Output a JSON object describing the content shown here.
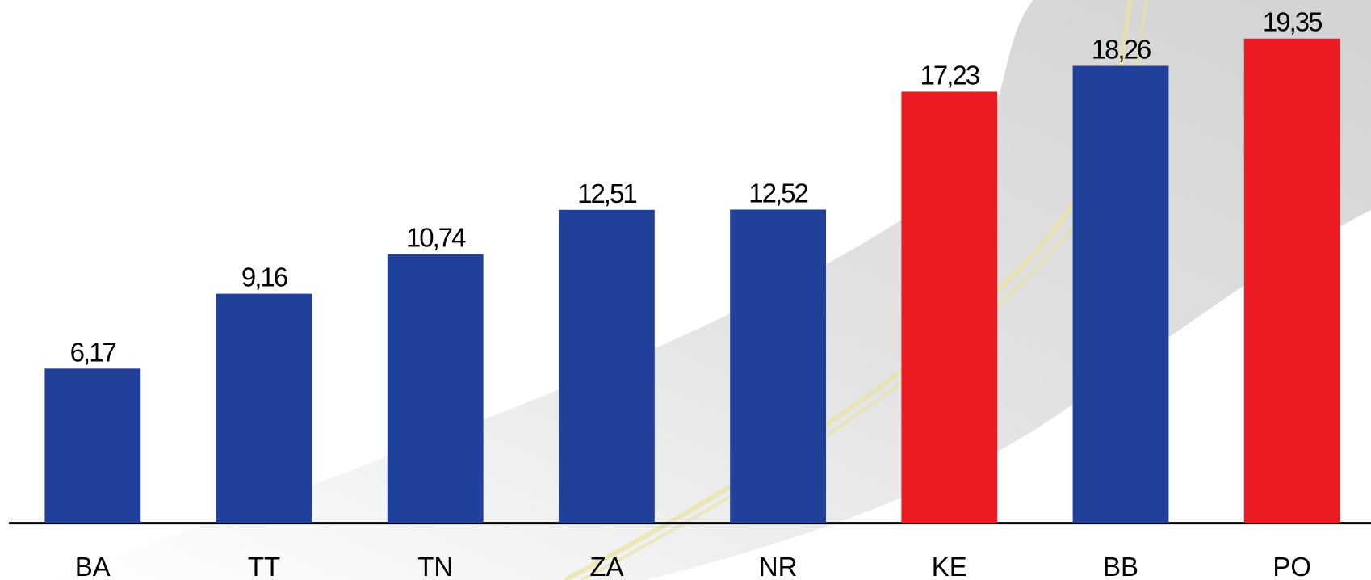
{
  "chart_data": {
    "type": "bar",
    "categories": [
      "BA",
      "TT",
      "TN",
      "ZA",
      "NR",
      "KE",
      "BB",
      "PO"
    ],
    "values": [
      6.17,
      9.16,
      10.74,
      12.51,
      12.52,
      17.23,
      18.26,
      19.35
    ],
    "value_labels": [
      "6,17",
      "9,16",
      "10,74",
      "12,51",
      "12,52",
      "17,23",
      "18,26",
      "19,35"
    ],
    "colors": [
      "#21409a",
      "#21409a",
      "#21409a",
      "#21409a",
      "#21409a",
      "#ed1c24",
      "#21409a",
      "#ed1c24"
    ],
    "ylim": [
      0,
      20.89
    ]
  }
}
